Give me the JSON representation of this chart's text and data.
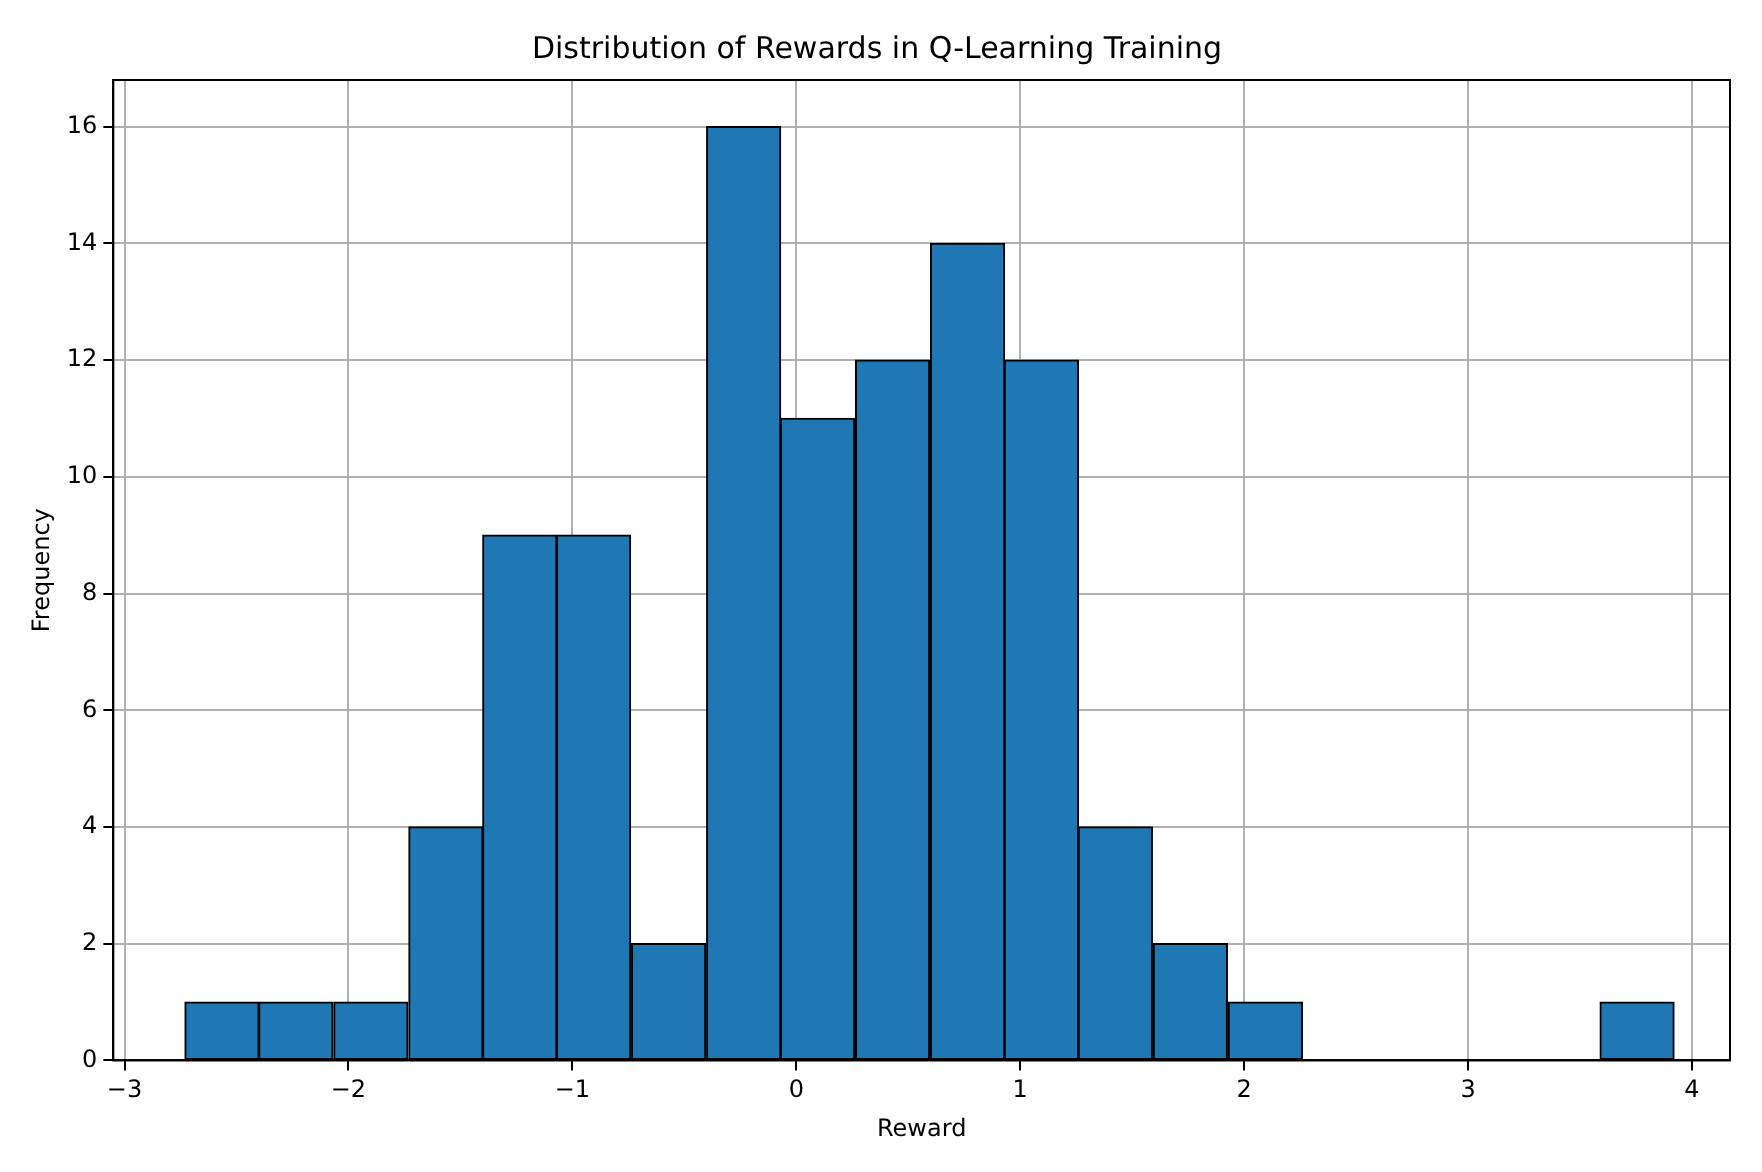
{
  "chart_data": {
    "type": "histogram",
    "title": "Distribution of Rewards in Q-Learning Training",
    "xlabel": "Reward",
    "ylabel": "Frequency",
    "bins": [
      -2.73,
      -2.4,
      -2.07,
      -1.73,
      -1.4,
      -1.07,
      -0.74,
      -0.4,
      -0.07,
      0.26,
      0.6,
      0.93,
      1.26,
      1.59,
      1.93,
      2.26,
      2.59,
      2.92,
      3.26,
      3.59,
      3.92
    ],
    "values": [
      1,
      1,
      1,
      4,
      9,
      9,
      2,
      16,
      11,
      12,
      14,
      12,
      4,
      2,
      1,
      0,
      0,
      0,
      0,
      1
    ],
    "color": "#1f77b4",
    "xlim": [
      -3.05,
      4.17
    ],
    "xticks": [
      -3,
      -2,
      -1,
      0,
      1,
      2,
      3,
      4
    ],
    "ylim": [
      0,
      16.8
    ],
    "yticks": [
      0,
      2,
      4,
      6,
      8,
      10,
      12,
      14,
      16
    ],
    "grid": true,
    "legend": false
  }
}
